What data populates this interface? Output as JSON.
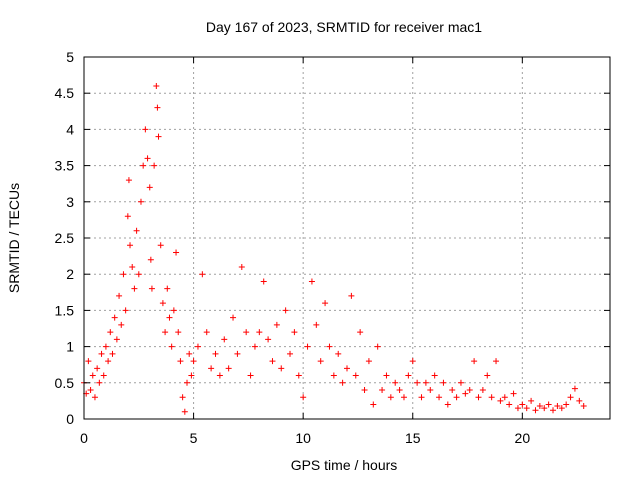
{
  "chart_data": {
    "type": "scatter",
    "title": "Day 167 of 2023, SRMTID for receiver mac1",
    "xlabel": "GPS time / hours",
    "ylabel": "SRMTID / TECUs",
    "xlim": [
      0,
      24
    ],
    "ylim": [
      0,
      5
    ],
    "xticks": [
      0,
      5,
      10,
      15,
      20
    ],
    "yticks": [
      0,
      0.5,
      1,
      1.5,
      2,
      2.5,
      3,
      3.5,
      4,
      4.5,
      5
    ],
    "xtick_labels": [
      "0",
      "5",
      "10",
      "15",
      "20"
    ],
    "ytick_labels": [
      "0",
      "0.5",
      "1",
      "1.5",
      "2",
      "2.5",
      "3",
      "3.5",
      "4",
      "4.5",
      "5"
    ],
    "grid": true,
    "marker": "+",
    "series": [
      {
        "name": "mac1",
        "color": "#ff0000",
        "x": [
          0.0,
          0.1,
          0.2,
          0.3,
          0.4,
          0.5,
          0.6,
          0.7,
          0.8,
          0.9,
          1.0,
          1.1,
          1.2,
          1.3,
          1.4,
          1.5,
          1.6,
          1.7,
          1.8,
          1.9,
          2.0,
          2.05,
          2.1,
          2.2,
          2.3,
          2.4,
          2.5,
          2.6,
          2.7,
          2.8,
          2.9,
          3.0,
          3.05,
          3.1,
          3.2,
          3.3,
          3.35,
          3.4,
          3.5,
          3.6,
          3.7,
          3.8,
          3.9,
          4.0,
          4.1,
          4.2,
          4.3,
          4.4,
          4.5,
          4.6,
          4.7,
          4.8,
          4.9,
          5.0,
          5.2,
          5.4,
          5.6,
          5.8,
          6.0,
          6.2,
          6.4,
          6.6,
          6.8,
          7.0,
          7.2,
          7.4,
          7.6,
          7.8,
          8.0,
          8.2,
          8.4,
          8.6,
          8.8,
          9.0,
          9.2,
          9.4,
          9.6,
          9.8,
          10.0,
          10.2,
          10.4,
          10.6,
          10.8,
          11.0,
          11.2,
          11.4,
          11.6,
          11.8,
          12.0,
          12.2,
          12.4,
          12.6,
          12.8,
          13.0,
          13.2,
          13.4,
          13.6,
          13.8,
          14.0,
          14.2,
          14.4,
          14.6,
          14.8,
          15.0,
          15.2,
          15.4,
          15.6,
          15.8,
          16.0,
          16.2,
          16.4,
          16.6,
          16.8,
          17.0,
          17.2,
          17.4,
          17.6,
          17.8,
          18.0,
          18.2,
          18.4,
          18.6,
          18.8,
          19.0,
          19.2,
          19.4,
          19.6,
          19.8,
          20.0,
          20.2,
          20.4,
          20.6,
          20.8,
          21.0,
          21.2,
          21.4,
          21.6,
          21.8,
          22.0,
          22.2,
          22.4,
          22.6,
          22.8
        ],
        "y": [
          0.5,
          0.35,
          0.8,
          0.4,
          0.6,
          0.3,
          0.7,
          0.5,
          0.9,
          0.6,
          1.0,
          0.8,
          1.2,
          0.9,
          1.4,
          1.1,
          1.7,
          1.3,
          2.0,
          1.5,
          2.8,
          3.3,
          2.4,
          2.1,
          1.8,
          2.6,
          2.0,
          3.0,
          3.5,
          4.0,
          3.6,
          3.2,
          2.2,
          1.8,
          3.5,
          4.6,
          4.3,
          3.9,
          2.4,
          1.6,
          1.2,
          1.8,
          1.4,
          1.0,
          1.5,
          2.3,
          1.2,
          0.8,
          0.3,
          0.1,
          0.5,
          0.9,
          0.6,
          0.8,
          1.0,
          2.0,
          1.2,
          0.7,
          0.9,
          0.6,
          1.1,
          0.7,
          1.4,
          0.9,
          2.1,
          1.2,
          0.6,
          1.0,
          1.2,
          1.9,
          1.1,
          0.8,
          1.3,
          0.7,
          1.5,
          0.9,
          1.2,
          0.6,
          0.3,
          1.0,
          1.9,
          1.3,
          0.8,
          1.6,
          1.0,
          0.6,
          0.9,
          0.5,
          0.7,
          1.7,
          0.6,
          1.2,
          0.4,
          0.8,
          0.2,
          1.0,
          0.4,
          0.6,
          0.3,
          0.5,
          0.4,
          0.3,
          0.6,
          0.8,
          0.5,
          0.3,
          0.5,
          0.4,
          0.6,
          0.3,
          0.5,
          0.2,
          0.4,
          0.3,
          0.5,
          0.35,
          0.4,
          0.8,
          0.3,
          0.4,
          0.6,
          0.3,
          0.8,
          0.25,
          0.3,
          0.2,
          0.35,
          0.15,
          0.2,
          0.15,
          0.25,
          0.12,
          0.18,
          0.15,
          0.2,
          0.12,
          0.18,
          0.15,
          0.2,
          0.3,
          0.42,
          0.25,
          0.18
        ]
      }
    ]
  }
}
